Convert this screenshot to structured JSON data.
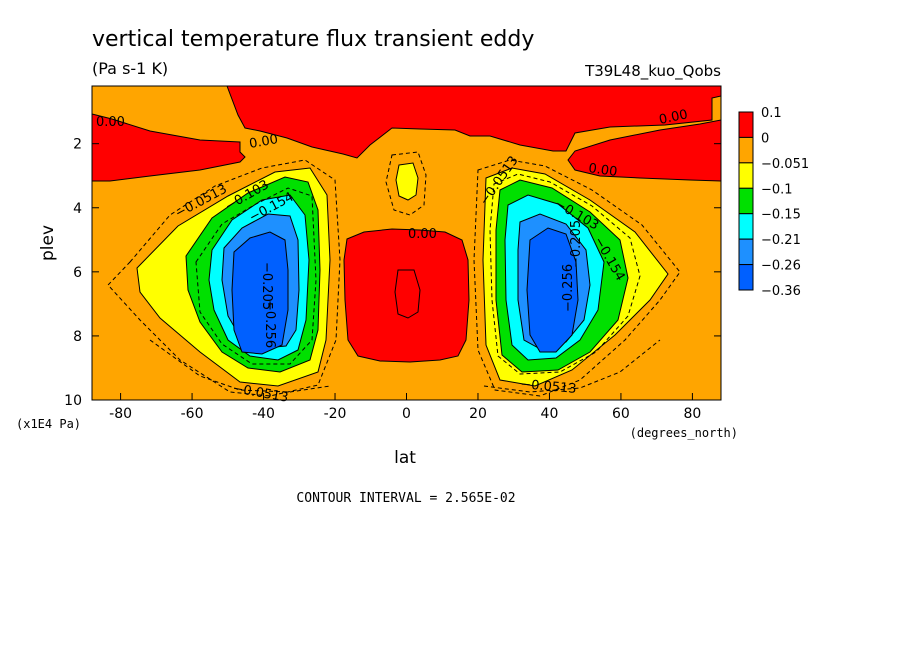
{
  "chart_data": {
    "type": "contour",
    "title": "vertical temperature flux transient eddy",
    "units": "(Pa s-1 K)",
    "run_label": "T39L48_kuo_Qobs",
    "xlabel": "lat",
    "x_units": "(degrees_north)",
    "ylabel": "plev",
    "y_units": "(x1E4 Pa)",
    "x_ticks": [
      "-80",
      "-60",
      "-40",
      "-20",
      "0",
      "20",
      "40",
      "60",
      "80"
    ],
    "y_ticks": [
      "2",
      "4",
      "6",
      "8",
      "10"
    ],
    "xlim": [
      -88,
      88
    ],
    "ylim": [
      10,
      0.2
    ],
    "y_reversed": true,
    "contour_interval_text": "CONTOUR INTERVAL = 2.565E-02",
    "colorbar": {
      "labels": [
        "0.1",
        "0",
        "−0.051",
        "−0.1",
        "−0.15",
        "−0.21",
        "−0.26",
        "−0.36"
      ],
      "colors": [
        "#ff0000",
        "#ffa500",
        "#ffff00",
        "#00e000",
        "#00ffff",
        "#1e90ff",
        "#0060ff"
      ]
    },
    "contour_labels": [
      "0.00",
      "0.00",
      "0.00",
      "0.00",
      "0.00",
      "−0.0513",
      "−0.103",
      "−0.154",
      "−0.205",
      "−0.256",
      "−0.0513",
      "−0.0513",
      "−0.103",
      "−0.154",
      "−0.205",
      "−0.256",
      "−0.0513"
    ],
    "features": [
      {
        "name": "southern-minimum",
        "lat": -42,
        "plev": 6.5,
        "value": -0.36
      },
      {
        "name": "northern-minimum",
        "lat": 42,
        "plev": 6.5,
        "value": -0.36
      },
      {
        "name": "equatorial-positive",
        "lat": 0,
        "plev": 6.8,
        "value": 0.1
      },
      {
        "name": "upper-positive-band",
        "lat": 0,
        "plev": 1.0,
        "value": 0.1
      }
    ]
  }
}
